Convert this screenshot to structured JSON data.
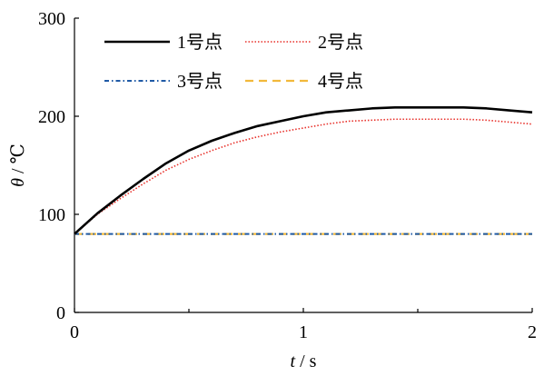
{
  "chart_data": {
    "type": "line",
    "title": "",
    "xlabel": {
      "var": "t",
      "unit": " / s"
    },
    "ylabel": {
      "var": "θ",
      "unit": " / ℃"
    },
    "xlim": [
      0,
      2
    ],
    "ylim": [
      0,
      300
    ],
    "xticks": [
      0,
      1,
      2
    ],
    "yticks": [
      0,
      100,
      200,
      300
    ],
    "grid": false,
    "legend": {
      "placement": "top-left",
      "columns": 2
    },
    "series": [
      {
        "name": "1号点",
        "color": "#000000",
        "style": "solid",
        "x": [
          0,
          0.1,
          0.2,
          0.3,
          0.4,
          0.5,
          0.6,
          0.7,
          0.8,
          0.9,
          1.0,
          1.1,
          1.2,
          1.3,
          1.4,
          1.5,
          1.6,
          1.7,
          1.8,
          1.9,
          2.0
        ],
        "y": [
          80,
          101,
          119,
          136,
          152,
          165,
          175,
          183,
          190,
          195,
          200,
          204,
          206,
          208,
          209,
          209,
          209,
          209,
          208,
          206,
          204
        ]
      },
      {
        "name": "2号点",
        "color": "#e8302a",
        "style": "dotted",
        "x": [
          0,
          0.1,
          0.2,
          0.3,
          0.4,
          0.5,
          0.6,
          0.7,
          0.8,
          0.9,
          1.0,
          1.1,
          1.2,
          1.3,
          1.4,
          1.5,
          1.6,
          1.7,
          1.8,
          1.9,
          2.0
        ],
        "y": [
          80,
          100,
          116,
          131,
          145,
          156,
          165,
          173,
          179,
          184,
          188,
          192,
          195,
          196,
          197,
          197,
          197,
          197,
          196,
          194,
          192
        ]
      },
      {
        "name": "3号点",
        "color": "#1f5aa6",
        "style": "dashdot",
        "x": [
          0,
          2
        ],
        "y": [
          80,
          80
        ]
      },
      {
        "name": "4号点",
        "color": "#f2b93b",
        "style": "dashed",
        "x": [
          0,
          2
        ],
        "y": [
          80,
          80
        ]
      }
    ]
  }
}
